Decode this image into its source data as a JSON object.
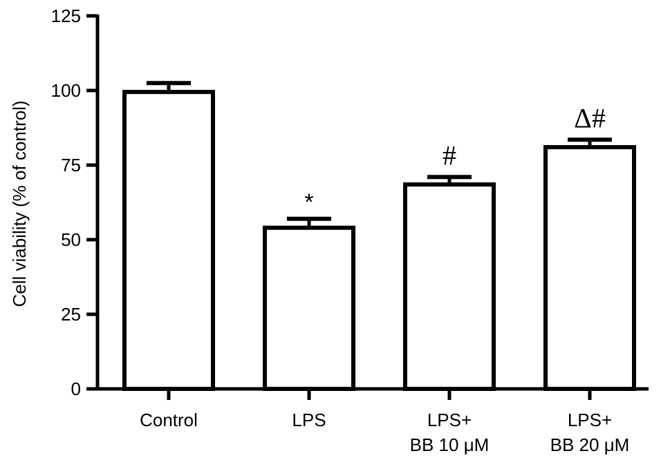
{
  "chart_data": {
    "type": "bar",
    "title": "",
    "xlabel": "",
    "ylabel": "Cell viability (% of control)",
    "ylim": [
      0,
      125
    ],
    "yticks": [
      0,
      25,
      50,
      75,
      100,
      125
    ],
    "grid": false,
    "categories": [
      [
        "Control"
      ],
      [
        "LPS"
      ],
      [
        "LPS+",
        "BB 10 μM"
      ],
      [
        "LPS+",
        "BB 20 μM"
      ]
    ],
    "values": [
      99.5,
      54,
      68.5,
      81
    ],
    "errors": [
      3,
      3,
      2.5,
      2.5
    ],
    "annotations": [
      "",
      "*",
      "#",
      "Δ#"
    ],
    "colors": {
      "bar_fill": "#ffffff",
      "stroke": "#000000"
    }
  }
}
